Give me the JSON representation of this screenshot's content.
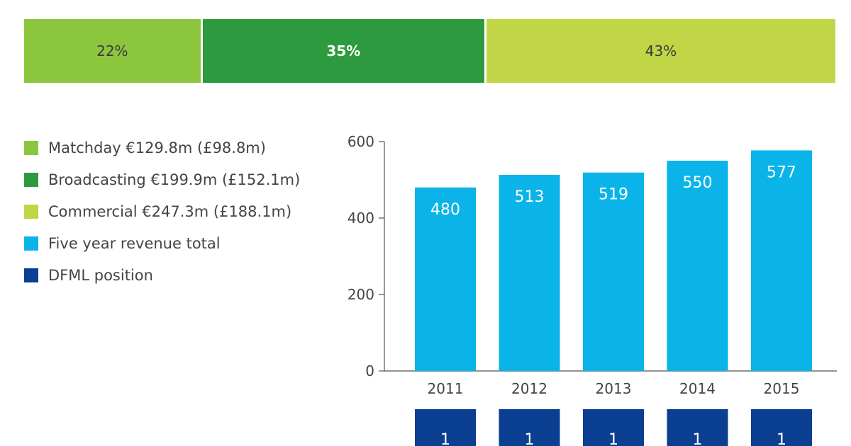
{
  "revenue_split": [
    {
      "label": "22%",
      "value": 22,
      "color": "#8cc63f"
    },
    {
      "label": "35%",
      "value": 35,
      "color": "#2e9a3f",
      "bold": true
    },
    {
      "label": "43%",
      "value": 43,
      "color": "#c1d647"
    }
  ],
  "legend": [
    {
      "label": "Matchday €129.8m (£98.8m)",
      "color": "#8cc63f"
    },
    {
      "label": "Broadcasting €199.9m (£152.1m)",
      "color": "#2e9a3f"
    },
    {
      "label": "Commercial €247.3m (£188.1m)",
      "color": "#c1d647"
    },
    {
      "label": "Five year revenue total",
      "color": "#0bb4e8"
    },
    {
      "label": "DFML position",
      "color": "#0a3f91"
    }
  ],
  "chart_data": {
    "type": "bar",
    "categories": [
      "2011",
      "2012",
      "2013",
      "2014",
      "2015"
    ],
    "values": [
      480,
      513,
      519,
      550,
      577
    ],
    "value_labels": [
      "480",
      "513",
      "519",
      "550",
      "577"
    ],
    "ylim": [
      0,
      600
    ],
    "yticks": [
      0,
      200,
      400,
      600
    ],
    "ytick_labels": [
      "0",
      "200",
      "400",
      "600"
    ],
    "bar_color": "#0bb4e8",
    "grid": false,
    "dfml_positions": [
      "1",
      "1",
      "1",
      "1",
      "1"
    ],
    "dfml_color": "#0a3f91"
  }
}
